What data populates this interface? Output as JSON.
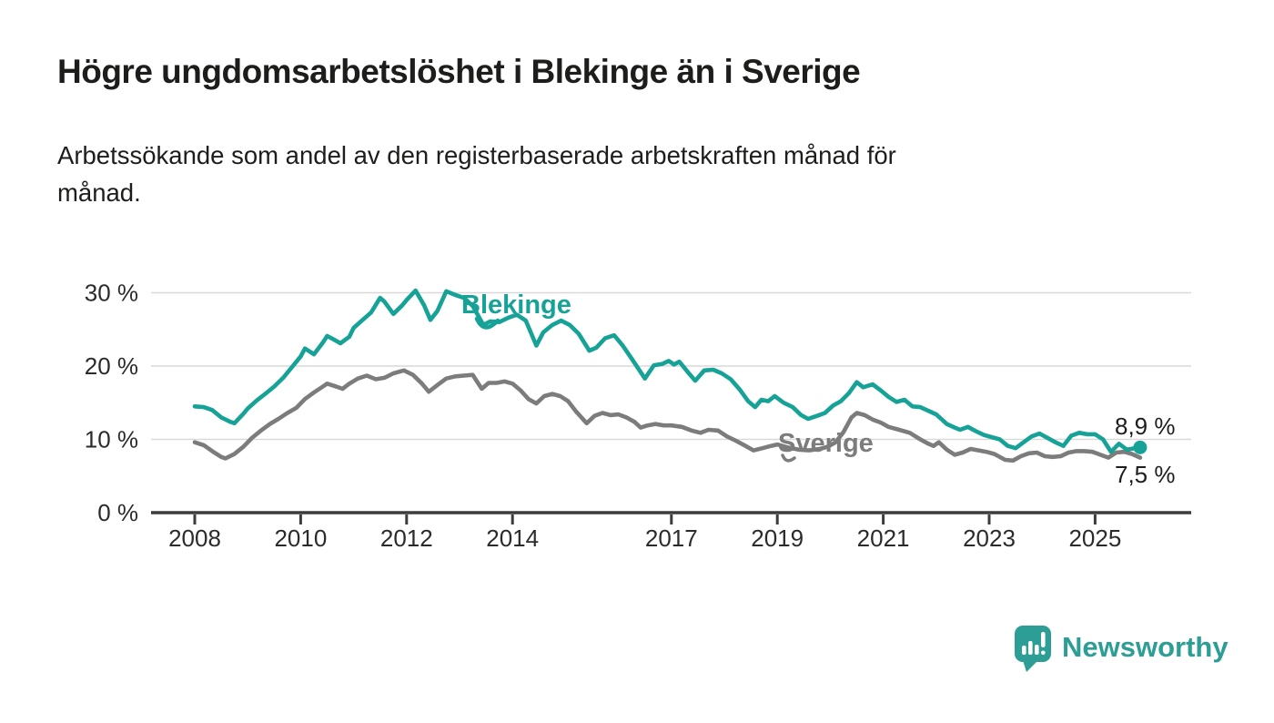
{
  "header": {
    "title": "Högre ungdomsarbetslöshet i Blekinge än i Sverige",
    "subtitle_lines": [
      "Arbetssökande som andel av den registerbaserade arbetskraften månad för",
      "månad."
    ]
  },
  "logo": {
    "text": "Newsworthy"
  },
  "colors": {
    "blekinge": "#16a296",
    "sverige": "#7c7c7c",
    "axis": "#3c3c3c",
    "grid": "#d9d9d9",
    "text": "#1d1d1b",
    "logo_teal": "#2d9e95"
  },
  "chart_data": {
    "type": "line",
    "title": "Högre ungdomsarbetslöshet i Blekinge än i Sverige",
    "subtitle": "Arbetssökande som andel av den registerbaserade arbetskraften månad för månad.",
    "xlabel": "",
    "ylabel": "",
    "grid": true,
    "legend_position": "inline-labels",
    "xlim": [
      2007.2,
      2026.8
    ],
    "ylim": [
      0,
      32
    ],
    "x_ticks": [
      {
        "value": 2008,
        "label": "2008"
      },
      {
        "value": 2010,
        "label": "2010"
      },
      {
        "value": 2012,
        "label": "2012"
      },
      {
        "value": 2014,
        "label": "2014"
      },
      {
        "value": 2017,
        "label": "2017"
      },
      {
        "value": 2019,
        "label": "2019"
      },
      {
        "value": 2021,
        "label": "2021"
      },
      {
        "value": 2023,
        "label": "2023"
      },
      {
        "value": 2025,
        "label": "2025"
      }
    ],
    "y_ticks": [
      {
        "value": 0,
        "label": "0 %"
      },
      {
        "value": 10,
        "label": "10 %"
      },
      {
        "value": 20,
        "label": "20 %"
      },
      {
        "value": 30,
        "label": "30 %"
      }
    ],
    "series": [
      {
        "name": "Sverige",
        "color": "#7c7c7c",
        "end_label": "7,5 %",
        "end_dot": false,
        "points": [
          [
            2008.0,
            9.6
          ],
          [
            2008.17,
            9.2
          ],
          [
            2008.33,
            8.4
          ],
          [
            2008.5,
            7.6
          ],
          [
            2008.58,
            7.4
          ],
          [
            2008.75,
            8.0
          ],
          [
            2008.92,
            9.0
          ],
          [
            2009.08,
            10.2
          ],
          [
            2009.25,
            11.2
          ],
          [
            2009.42,
            12.1
          ],
          [
            2009.58,
            12.8
          ],
          [
            2009.75,
            13.6
          ],
          [
            2009.92,
            14.3
          ],
          [
            2010.08,
            15.5
          ],
          [
            2010.25,
            16.4
          ],
          [
            2010.42,
            17.2
          ],
          [
            2010.5,
            17.6
          ],
          [
            2010.67,
            17.2
          ],
          [
            2010.79,
            16.9
          ],
          [
            2010.92,
            17.6
          ],
          [
            2011.08,
            18.3
          ],
          [
            2011.25,
            18.7
          ],
          [
            2011.42,
            18.2
          ],
          [
            2011.58,
            18.4
          ],
          [
            2011.75,
            19.0
          ],
          [
            2011.95,
            19.4
          ],
          [
            2012.12,
            18.8
          ],
          [
            2012.29,
            17.6
          ],
          [
            2012.42,
            16.5
          ],
          [
            2012.58,
            17.4
          ],
          [
            2012.75,
            18.3
          ],
          [
            2012.92,
            18.6
          ],
          [
            2013.08,
            18.7
          ],
          [
            2013.25,
            18.8
          ],
          [
            2013.42,
            16.9
          ],
          [
            2013.55,
            17.7
          ],
          [
            2013.7,
            17.7
          ],
          [
            2013.85,
            17.9
          ],
          [
            2014.0,
            17.6
          ],
          [
            2014.15,
            16.7
          ],
          [
            2014.3,
            15.5
          ],
          [
            2014.45,
            14.9
          ],
          [
            2014.6,
            15.9
          ],
          [
            2014.75,
            16.2
          ],
          [
            2014.9,
            15.9
          ],
          [
            2015.05,
            15.2
          ],
          [
            2015.2,
            13.8
          ],
          [
            2015.4,
            12.2
          ],
          [
            2015.55,
            13.2
          ],
          [
            2015.7,
            13.6
          ],
          [
            2015.85,
            13.3
          ],
          [
            2016.0,
            13.4
          ],
          [
            2016.15,
            13.0
          ],
          [
            2016.3,
            12.4
          ],
          [
            2016.42,
            11.6
          ],
          [
            2016.55,
            11.9
          ],
          [
            2016.7,
            12.1
          ],
          [
            2016.85,
            11.9
          ],
          [
            2017.0,
            11.9
          ],
          [
            2017.2,
            11.7
          ],
          [
            2017.38,
            11.2
          ],
          [
            2017.55,
            10.9
          ],
          [
            2017.7,
            11.3
          ],
          [
            2017.88,
            11.2
          ],
          [
            2018.05,
            10.4
          ],
          [
            2018.22,
            9.8
          ],
          [
            2018.4,
            9.1
          ],
          [
            2018.55,
            8.5
          ],
          [
            2018.72,
            8.8
          ],
          [
            2018.88,
            9.1
          ],
          [
            2019.0,
            9.3
          ],
          [
            2019.2,
            8.9
          ],
          [
            2019.4,
            8.6
          ],
          [
            2019.6,
            8.5
          ],
          [
            2019.8,
            8.7
          ],
          [
            2019.95,
            9.0
          ],
          [
            2020.1,
            9.6
          ],
          [
            2020.25,
            11.0
          ],
          [
            2020.4,
            13.0
          ],
          [
            2020.5,
            13.6
          ],
          [
            2020.65,
            13.3
          ],
          [
            2020.8,
            12.7
          ],
          [
            2020.95,
            12.3
          ],
          [
            2021.1,
            11.7
          ],
          [
            2021.3,
            11.3
          ],
          [
            2021.5,
            10.9
          ],
          [
            2021.7,
            10.0
          ],
          [
            2021.85,
            9.4
          ],
          [
            2021.95,
            9.1
          ],
          [
            2022.05,
            9.6
          ],
          [
            2022.2,
            8.6
          ],
          [
            2022.35,
            7.9
          ],
          [
            2022.5,
            8.2
          ],
          [
            2022.65,
            8.7
          ],
          [
            2022.8,
            8.5
          ],
          [
            2022.95,
            8.3
          ],
          [
            2023.1,
            8.0
          ],
          [
            2023.3,
            7.2
          ],
          [
            2023.45,
            7.1
          ],
          [
            2023.6,
            7.7
          ],
          [
            2023.75,
            8.1
          ],
          [
            2023.9,
            8.2
          ],
          [
            2024.05,
            7.7
          ],
          [
            2024.2,
            7.6
          ],
          [
            2024.35,
            7.7
          ],
          [
            2024.5,
            8.2
          ],
          [
            2024.65,
            8.4
          ],
          [
            2024.8,
            8.4
          ],
          [
            2024.95,
            8.3
          ],
          [
            2025.1,
            7.9
          ],
          [
            2025.25,
            7.5
          ],
          [
            2025.4,
            8.2
          ],
          [
            2025.55,
            8.3
          ],
          [
            2025.7,
            8.0
          ],
          [
            2025.85,
            7.5
          ]
        ]
      },
      {
        "name": "Blekinge",
        "color": "#16a296",
        "end_label": "8,9 %",
        "end_dot": true,
        "points": [
          [
            2008.0,
            14.5
          ],
          [
            2008.17,
            14.4
          ],
          [
            2008.33,
            14.0
          ],
          [
            2008.5,
            13.0
          ],
          [
            2008.67,
            12.4
          ],
          [
            2008.75,
            12.2
          ],
          [
            2008.92,
            13.5
          ],
          [
            2009.0,
            14.2
          ],
          [
            2009.17,
            15.3
          ],
          [
            2009.33,
            16.2
          ],
          [
            2009.5,
            17.2
          ],
          [
            2009.67,
            18.4
          ],
          [
            2009.83,
            19.8
          ],
          [
            2010.0,
            21.3
          ],
          [
            2010.08,
            22.4
          ],
          [
            2010.25,
            21.6
          ],
          [
            2010.42,
            23.2
          ],
          [
            2010.5,
            24.1
          ],
          [
            2010.58,
            23.8
          ],
          [
            2010.75,
            23.1
          ],
          [
            2010.92,
            24.0
          ],
          [
            2011.0,
            25.2
          ],
          [
            2011.17,
            26.3
          ],
          [
            2011.33,
            27.3
          ],
          [
            2011.5,
            29.3
          ],
          [
            2011.58,
            28.8
          ],
          [
            2011.75,
            27.1
          ],
          [
            2011.92,
            28.3
          ],
          [
            2012.0,
            29.0
          ],
          [
            2012.17,
            30.3
          ],
          [
            2012.33,
            28.3
          ],
          [
            2012.45,
            26.3
          ],
          [
            2012.58,
            27.5
          ],
          [
            2012.75,
            30.2
          ],
          [
            2012.92,
            29.7
          ],
          [
            2013.08,
            29.3
          ],
          [
            2013.25,
            28.2
          ],
          [
            2013.45,
            25.6
          ],
          [
            2013.58,
            26.1
          ],
          [
            2013.75,
            26.0
          ],
          [
            2013.92,
            26.6
          ],
          [
            2014.08,
            27.0
          ],
          [
            2014.25,
            26.2
          ],
          [
            2014.45,
            22.8
          ],
          [
            2014.58,
            24.6
          ],
          [
            2014.75,
            25.6
          ],
          [
            2014.92,
            26.2
          ],
          [
            2015.08,
            25.6
          ],
          [
            2015.25,
            24.4
          ],
          [
            2015.45,
            22.1
          ],
          [
            2015.58,
            22.5
          ],
          [
            2015.75,
            23.8
          ],
          [
            2015.92,
            24.2
          ],
          [
            2016.08,
            22.8
          ],
          [
            2016.25,
            21.0
          ],
          [
            2016.5,
            18.3
          ],
          [
            2016.67,
            20.1
          ],
          [
            2016.83,
            20.3
          ],
          [
            2016.95,
            20.7
          ],
          [
            2017.05,
            20.2
          ],
          [
            2017.15,
            20.6
          ],
          [
            2017.33,
            19.0
          ],
          [
            2017.45,
            18.0
          ],
          [
            2017.62,
            19.4
          ],
          [
            2017.79,
            19.5
          ],
          [
            2017.95,
            19.0
          ],
          [
            2018.12,
            18.2
          ],
          [
            2018.29,
            16.8
          ],
          [
            2018.45,
            15.2
          ],
          [
            2018.58,
            14.4
          ],
          [
            2018.7,
            15.4
          ],
          [
            2018.83,
            15.2
          ],
          [
            2018.95,
            15.9
          ],
          [
            2019.12,
            15.0
          ],
          [
            2019.29,
            14.4
          ],
          [
            2019.45,
            13.3
          ],
          [
            2019.58,
            12.8
          ],
          [
            2019.75,
            13.2
          ],
          [
            2019.9,
            13.6
          ],
          [
            2020.05,
            14.6
          ],
          [
            2020.2,
            15.2
          ],
          [
            2020.35,
            16.3
          ],
          [
            2020.5,
            17.8
          ],
          [
            2020.62,
            17.1
          ],
          [
            2020.8,
            17.5
          ],
          [
            2020.95,
            16.7
          ],
          [
            2021.1,
            15.8
          ],
          [
            2021.25,
            15.1
          ],
          [
            2021.4,
            15.4
          ],
          [
            2021.55,
            14.5
          ],
          [
            2021.7,
            14.4
          ],
          [
            2021.85,
            13.9
          ],
          [
            2022.0,
            13.4
          ],
          [
            2022.2,
            12.1
          ],
          [
            2022.35,
            11.6
          ],
          [
            2022.45,
            11.3
          ],
          [
            2022.6,
            11.7
          ],
          [
            2022.75,
            11.1
          ],
          [
            2022.9,
            10.6
          ],
          [
            2023.05,
            10.3
          ],
          [
            2023.2,
            10.0
          ],
          [
            2023.35,
            9.1
          ],
          [
            2023.5,
            8.8
          ],
          [
            2023.65,
            9.6
          ],
          [
            2023.8,
            10.4
          ],
          [
            2023.95,
            10.8
          ],
          [
            2024.1,
            10.2
          ],
          [
            2024.25,
            9.6
          ],
          [
            2024.4,
            9.1
          ],
          [
            2024.55,
            10.5
          ],
          [
            2024.7,
            10.9
          ],
          [
            2024.85,
            10.7
          ],
          [
            2025.0,
            10.7
          ],
          [
            2025.15,
            10.0
          ],
          [
            2025.3,
            8.3
          ],
          [
            2025.45,
            9.4
          ],
          [
            2025.6,
            8.6
          ],
          [
            2025.75,
            8.8
          ],
          [
            2025.85,
            8.9
          ]
        ]
      }
    ],
    "annotations": [
      {
        "series": "Blekinge",
        "text": "Blekinge"
      },
      {
        "series": "Sverige",
        "text": "Sverige"
      }
    ]
  }
}
